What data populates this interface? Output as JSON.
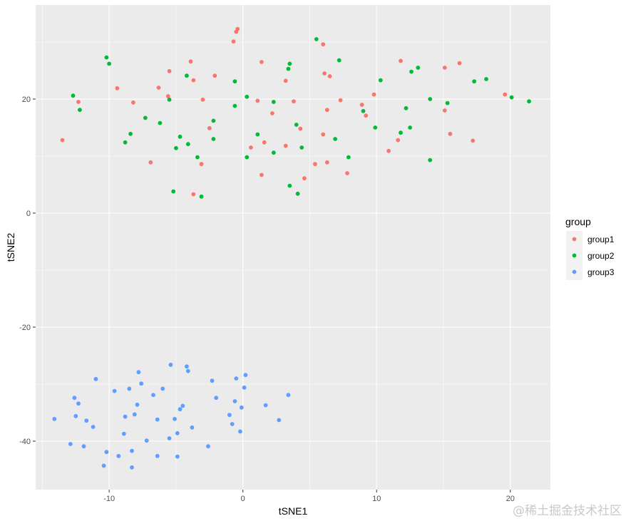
{
  "chart_data": {
    "type": "scatter",
    "xlabel": "tSNE1",
    "ylabel": "tSNE2",
    "xlim": [
      -15.5,
      23
    ],
    "ylim": [
      -48.5,
      36.5
    ],
    "x_ticks": [
      -10,
      0,
      10,
      20
    ],
    "y_ticks": [
      -40,
      -20,
      0,
      20
    ],
    "x_tick_labels": [
      "-10",
      "0",
      "10",
      "20"
    ],
    "y_tick_labels": [
      "-40",
      "-20",
      "0",
      "20"
    ],
    "grid": true,
    "legend": {
      "title": "group",
      "placement": "right"
    },
    "colors": {
      "group1": "#F8766D",
      "group2": "#00BA38",
      "group3": "#619CFF",
      "panel": "#EBEBEB",
      "grid": "#FFFFFF"
    },
    "series": [
      {
        "name": "group1",
        "points": [
          [
            -13.5,
            12.8
          ],
          [
            -12.3,
            19.5
          ],
          [
            -9.4,
            21.9
          ],
          [
            -8.2,
            19.4
          ],
          [
            -6.9,
            8.9
          ],
          [
            -6.3,
            22.0
          ],
          [
            -5.6,
            20.5
          ],
          [
            -5.5,
            24.9
          ],
          [
            -3.9,
            26.6
          ],
          [
            -3.7,
            23.3
          ],
          [
            -3.7,
            3.3
          ],
          [
            -3.1,
            8.6
          ],
          [
            -3.0,
            19.9
          ],
          [
            -2.5,
            14.9
          ],
          [
            -2.1,
            24.1
          ],
          [
            -0.7,
            30.1
          ],
          [
            -0.5,
            31.8
          ],
          [
            -0.4,
            32.3
          ],
          [
            0.6,
            11.5
          ],
          [
            1.1,
            19.7
          ],
          [
            1.4,
            26.5
          ],
          [
            1.4,
            6.7
          ],
          [
            1.6,
            12.4
          ],
          [
            2.2,
            17.5
          ],
          [
            3.2,
            23.2
          ],
          [
            3.2,
            11.8
          ],
          [
            3.8,
            19.6
          ],
          [
            4.3,
            14.8
          ],
          [
            4.6,
            6.1
          ],
          [
            5.4,
            8.6
          ],
          [
            6.0,
            29.6
          ],
          [
            6.1,
            24.5
          ],
          [
            6.0,
            13.8
          ],
          [
            6.3,
            8.9
          ],
          [
            6.3,
            18.1
          ],
          [
            6.5,
            24.0
          ],
          [
            7.3,
            19.8
          ],
          [
            7.8,
            7.0
          ],
          [
            8.9,
            19.0
          ],
          [
            9.2,
            17.1
          ],
          [
            9.8,
            20.8
          ],
          [
            10.9,
            10.9
          ],
          [
            11.6,
            12.8
          ],
          [
            11.8,
            26.7
          ],
          [
            15.1,
            25.5
          ],
          [
            15.1,
            18.0
          ],
          [
            15.5,
            13.9
          ],
          [
            16.2,
            26.3
          ],
          [
            17.2,
            12.7
          ],
          [
            19.6,
            20.8
          ]
        ]
      },
      {
        "name": "group2",
        "points": [
          [
            -12.7,
            20.6
          ],
          [
            -12.2,
            18.1
          ],
          [
            -10.2,
            27.3
          ],
          [
            -10.0,
            26.2
          ],
          [
            -8.8,
            12.4
          ],
          [
            -8.4,
            13.9
          ],
          [
            -7.3,
            16.7
          ],
          [
            -6.2,
            15.8
          ],
          [
            -5.5,
            19.9
          ],
          [
            -5.2,
            3.8
          ],
          [
            -5.0,
            11.4
          ],
          [
            -4.7,
            13.4
          ],
          [
            -4.2,
            24.1
          ],
          [
            -4.1,
            12.1
          ],
          [
            -3.4,
            9.8
          ],
          [
            -3.1,
            2.9
          ],
          [
            -2.2,
            16.2
          ],
          [
            -2.2,
            13.0
          ],
          [
            -0.6,
            23.1
          ],
          [
            -0.6,
            18.8
          ],
          [
            0.3,
            20.4
          ],
          [
            0.3,
            9.8
          ],
          [
            1.1,
            13.8
          ],
          [
            2.3,
            10.6
          ],
          [
            2.3,
            19.5
          ],
          [
            3.4,
            25.3
          ],
          [
            3.5,
            26.2
          ],
          [
            3.5,
            4.8
          ],
          [
            4.0,
            15.5
          ],
          [
            4.1,
            3.4
          ],
          [
            4.4,
            11.5
          ],
          [
            5.5,
            30.5
          ],
          [
            6.9,
            13.0
          ],
          [
            7.2,
            26.8
          ],
          [
            7.9,
            9.8
          ],
          [
            9.0,
            17.9
          ],
          [
            9.9,
            15.0
          ],
          [
            10.3,
            23.3
          ],
          [
            11.8,
            14.1
          ],
          [
            12.2,
            18.4
          ],
          [
            12.5,
            15.0
          ],
          [
            12.6,
            24.8
          ],
          [
            13.1,
            25.5
          ],
          [
            14.0,
            20.0
          ],
          [
            14.0,
            9.3
          ],
          [
            15.3,
            19.3
          ],
          [
            17.3,
            23.1
          ],
          [
            18.2,
            23.5
          ],
          [
            20.1,
            20.3
          ],
          [
            21.4,
            19.6
          ]
        ]
      },
      {
        "name": "group3",
        "points": [
          [
            -14.1,
            -36.1
          ],
          [
            -12.9,
            -40.5
          ],
          [
            -12.6,
            -32.4
          ],
          [
            -12.5,
            -35.6
          ],
          [
            -12.3,
            -33.4
          ],
          [
            -11.9,
            -40.9
          ],
          [
            -11.7,
            -36.4
          ],
          [
            -11.2,
            -37.5
          ],
          [
            -11.0,
            -29.1
          ],
          [
            -10.4,
            -44.3
          ],
          [
            -10.2,
            -41.9
          ],
          [
            -9.6,
            -31.2
          ],
          [
            -9.3,
            -42.6
          ],
          [
            -8.9,
            -38.7
          ],
          [
            -8.8,
            -35.7
          ],
          [
            -8.5,
            -30.8
          ],
          [
            -8.3,
            -44.6
          ],
          [
            -8.3,
            -41.7
          ],
          [
            -8.1,
            -35.3
          ],
          [
            -7.9,
            -33.6
          ],
          [
            -7.8,
            -27.9
          ],
          [
            -7.6,
            -29.9
          ],
          [
            -7.2,
            -39.9
          ],
          [
            -6.7,
            -31.9
          ],
          [
            -6.4,
            -42.6
          ],
          [
            -6.4,
            -36.2
          ],
          [
            -6.0,
            -30.8
          ],
          [
            -5.5,
            -39.5
          ],
          [
            -5.4,
            -26.6
          ],
          [
            -5.1,
            -36.1
          ],
          [
            -4.9,
            -42.7
          ],
          [
            -4.9,
            -38.6
          ],
          [
            -4.7,
            -34.4
          ],
          [
            -4.5,
            -33.8
          ],
          [
            -4.2,
            -26.9
          ],
          [
            -4.1,
            -27.7
          ],
          [
            -3.8,
            -37.6
          ],
          [
            -2.6,
            -40.9
          ],
          [
            -2.3,
            -29.4
          ],
          [
            -2.0,
            -32.4
          ],
          [
            -1.0,
            -35.4
          ],
          [
            -0.8,
            -37.0
          ],
          [
            -0.6,
            -33.0
          ],
          [
            -0.5,
            -29.0
          ],
          [
            -0.2,
            -38.3
          ],
          [
            -0.1,
            -34.1
          ],
          [
            0.1,
            -30.6
          ],
          [
            0.2,
            -28.4
          ],
          [
            1.7,
            -33.7
          ],
          [
            2.7,
            -36.3
          ],
          [
            3.4,
            -31.9
          ]
        ]
      }
    ]
  },
  "watermark": "@稀土掘金技术社区"
}
